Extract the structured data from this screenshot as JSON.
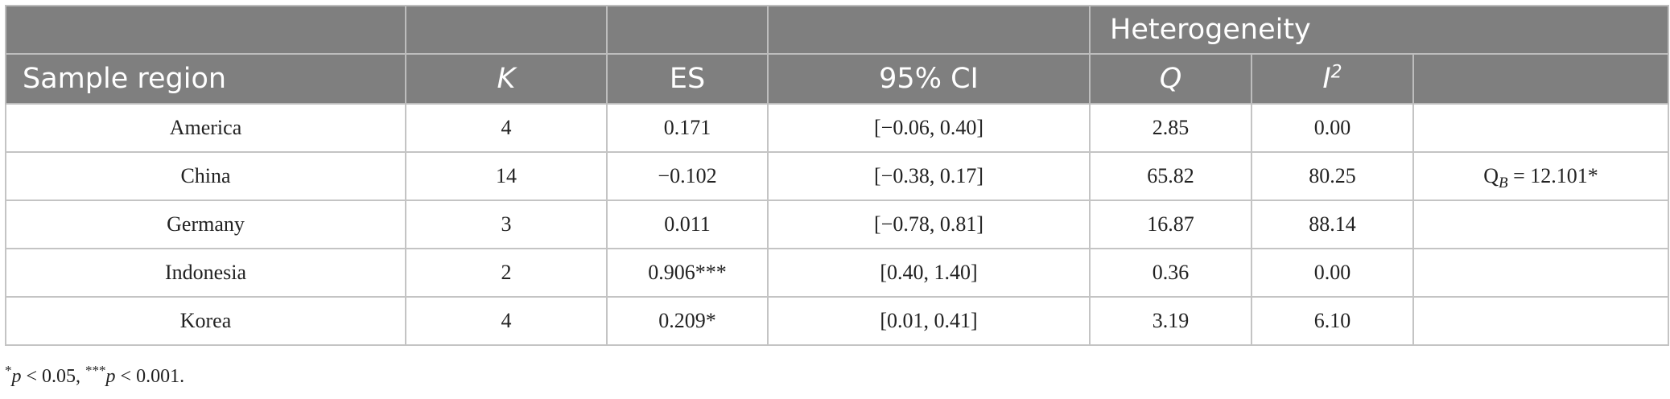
{
  "header": {
    "group_label": "Heterogeneity",
    "columns": {
      "region": "Sample region",
      "k": "K",
      "es": "ES",
      "ci": "95% CI",
      "q": "Q",
      "i2_base": "I",
      "i2_sup": "2"
    }
  },
  "rows": [
    {
      "region": "America",
      "k": "4",
      "es": "0.171",
      "ci": "[−0.06, 0.40]",
      "q": "2.85",
      "i2": "0.00"
    },
    {
      "region": "China",
      "k": "14",
      "es": "−0.102",
      "ci": "[−0.38, 0.17]",
      "q": "65.82",
      "i2": "80.25"
    },
    {
      "region": "Germany",
      "k": "3",
      "es": "0.011",
      "ci": "[−0.78, 0.81]",
      "q": "16.87",
      "i2": "88.14"
    },
    {
      "region": "Indonesia",
      "k": "2",
      "es": "0.906***",
      "ci": "[0.40, 1.40]",
      "q": "0.36",
      "i2": "0.00"
    },
    {
      "region": "Korea",
      "k": "4",
      "es": "0.209*",
      "ci": "[0.01, 0.41]",
      "q": "3.19",
      "i2": "6.10"
    }
  ],
  "qb": {
    "prefix": "Q",
    "subscript": "B",
    "value": " = 12.101*"
  },
  "footnote": {
    "star1": "*",
    "p1": "p",
    "text1": " < 0.05, ",
    "star2": "***",
    "p2": "p",
    "text2": " < 0.001."
  }
}
